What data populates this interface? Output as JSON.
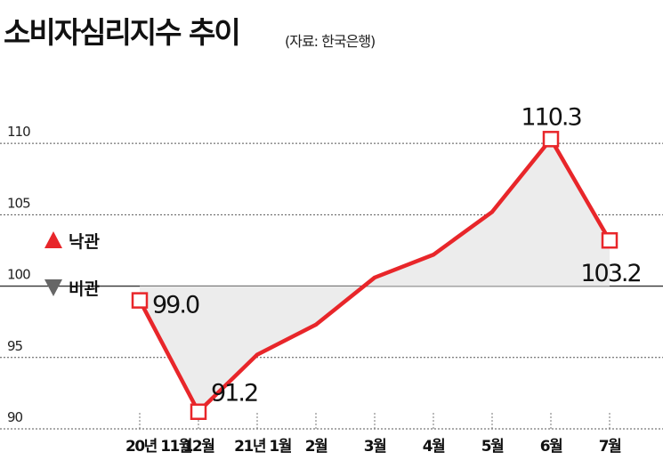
{
  "title": "소비자심리지수 추이",
  "source": "(자료: 한국은행)",
  "colors": {
    "line": "#e8262a",
    "fill": "#ececec",
    "marker_fill": "#ffffff",
    "up_triangle": "#e8262a",
    "down_triangle": "#666666",
    "grid": "#555555",
    "baseline": "#333333",
    "text": "#111111"
  },
  "legend": {
    "optimism": "낙관",
    "pessimism": "비관"
  },
  "chart_data": {
    "type": "line",
    "title": "소비자심리지수 추이",
    "categories": [
      "20년 11월",
      "12월",
      "21년 1월",
      "2월",
      "3월",
      "4월",
      "5월",
      "6월",
      "7월"
    ],
    "series": [
      {
        "values": [
          99.0,
          91.2,
          95.2,
          97.3,
          100.6,
          102.2,
          105.2,
          110.3,
          103.2
        ],
        "labeled_points": [
          {
            "index": 0,
            "label": "99.0"
          },
          {
            "index": 1,
            "label": "91.2"
          },
          {
            "index": 7,
            "label": "110.3"
          },
          {
            "index": 8,
            "label": "103.2"
          }
        ]
      }
    ],
    "baseline": 100,
    "ylim": [
      90,
      113
    ],
    "yticks": [
      90,
      95,
      100,
      105,
      110
    ],
    "grid": true,
    "legend_position": "left"
  }
}
